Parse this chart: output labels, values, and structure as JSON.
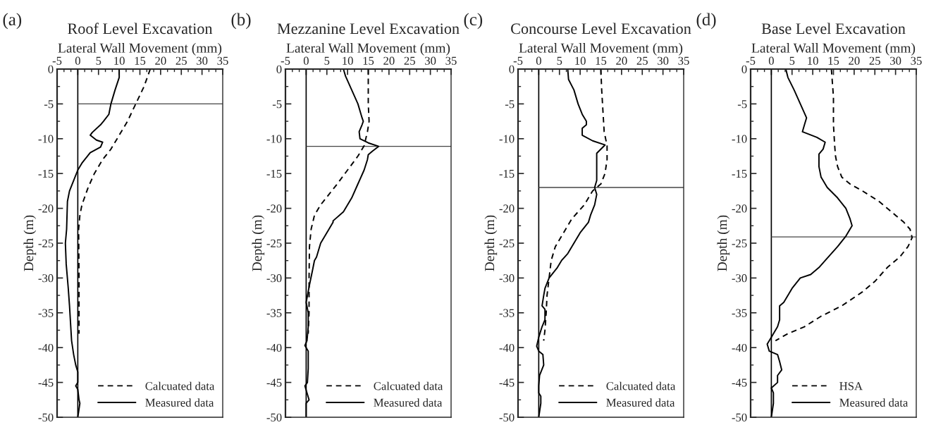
{
  "chart_data": [
    {
      "type": "line",
      "title": "Roof Level Excavation",
      "xlabel": "Lateral Wall Movement (mm)",
      "ylabel": "Depth (m)",
      "annotations": [
        "(a)"
      ],
      "xlim": [
        -5,
        35
      ],
      "xticks": [
        -5,
        0,
        5,
        10,
        15,
        20,
        25,
        30,
        35
      ],
      "ylim": [
        -50,
        0
      ],
      "yticks": [
        -50,
        -45,
        -40,
        -35,
        -30,
        -25,
        -20,
        -15,
        -10,
        -5,
        0
      ],
      "legend": "bottom right",
      "ref_lines": [
        {
          "axis": "x",
          "value": 0,
          "color": "#000000"
        },
        {
          "axis": "y",
          "value": -5,
          "color": "#444444"
        }
      ],
      "series": [
        {
          "name": "Calcuated data",
          "color": "#000000",
          "line_style": "dashed",
          "x": [
            17.5,
            16,
            14,
            12,
            10,
            8,
            6,
            4,
            2.5,
            1,
            0.5,
            0.2,
            0.3,
            0.3
          ],
          "values": [
            0,
            -2.5,
            -5,
            -7.5,
            -9.5,
            -11.5,
            -13,
            -15,
            -17,
            -19.5,
            -21,
            -23,
            -30,
            -38
          ]
        },
        {
          "name": "Measured data",
          "color": "#000000",
          "line_style": "solid",
          "x": [
            10,
            10,
            9,
            8,
            7.5,
            6.2,
            5.5,
            3.5,
            3,
            4.5,
            6,
            5.5,
            3,
            1,
            0,
            -1,
            -2,
            -2.5,
            -2.6,
            -2.7,
            -3,
            -2.8,
            -2.3,
            -2,
            -1.5,
            -1,
            -0.5,
            0,
            0,
            -0.5,
            0,
            0.3,
            0.5,
            0
          ],
          "values": [
            0,
            -1.2,
            -3,
            -5,
            -6.5,
            -7.5,
            -8,
            -9.1,
            -9.5,
            -10.2,
            -10.5,
            -11.2,
            -12,
            -13.5,
            -14.5,
            -16,
            -17.5,
            -19,
            -21,
            -23,
            -25,
            -28,
            -31.5,
            -34,
            -39,
            -41,
            -42.5,
            -43.5,
            -45,
            -45.5,
            -46,
            -47.5,
            -48,
            -50
          ]
        }
      ]
    },
    {
      "type": "line",
      "title": "Mezzanine Level Excavation",
      "xlabel": "Lateral Wall Movement (mm)",
      "ylabel": "Depth (m)",
      "annotations": [
        "(b)"
      ],
      "xlim": [
        -5,
        35
      ],
      "xticks": [
        -5,
        0,
        5,
        10,
        15,
        20,
        25,
        30,
        35
      ],
      "ylim": [
        -50,
        0
      ],
      "yticks": [
        -50,
        -45,
        -40,
        -35,
        -30,
        -25,
        -20,
        -15,
        -10,
        -5,
        0
      ],
      "legend": "bottom right",
      "ref_lines": [
        {
          "axis": "x",
          "value": 0,
          "color": "#000000"
        },
        {
          "axis": "y",
          "value": -11.1,
          "color": "#444444"
        }
      ],
      "series": [
        {
          "name": "Calcuated data",
          "color": "#000000",
          "line_style": "dashed",
          "x": [
            15,
            15,
            15.2,
            14.8,
            14,
            12.5,
            10,
            7.5,
            5.5,
            3.5,
            2,
            1.2,
            0.8,
            0.7,
            0.7,
            0.5
          ],
          "values": [
            0,
            -5,
            -7.5,
            -9,
            -11,
            -12.5,
            -14.5,
            -16.5,
            -18,
            -19.5,
            -21,
            -23,
            -25.5,
            -30,
            -35,
            -38
          ]
        },
        {
          "name": "Measured data",
          "color": "#000000",
          "line_style": "solid",
          "x": [
            9,
            9.5,
            11,
            12.5,
            13.5,
            13.8,
            13.5,
            12.8,
            13,
            15,
            17.5,
            16,
            15,
            14.8,
            14,
            12.5,
            11,
            9,
            6.5,
            6.5,
            5.5,
            3.5,
            2.5,
            2,
            1.5,
            0.8,
            0,
            0.5,
            0.5,
            0.2,
            -0.3,
            0.5,
            0.5,
            0.3,
            -0.3,
            0.2,
            0.7,
            0,
            0
          ],
          "values": [
            0,
            -1,
            -3,
            -5,
            -7,
            -7.5,
            -8,
            -9,
            -10,
            -10.6,
            -11.1,
            -11.8,
            -12.3,
            -13,
            -14.5,
            -16.5,
            -18.5,
            -20.5,
            -21.8,
            -22,
            -23,
            -25,
            -27,
            -27.5,
            -29,
            -31,
            -33.5,
            -35,
            -37,
            -39,
            -39.7,
            -40.5,
            -43,
            -45,
            -45.5,
            -46.5,
            -47.5,
            -48,
            -50
          ]
        }
      ]
    },
    {
      "type": "line",
      "title": "Concourse Level Excavation",
      "xlabel": "Lateral Wall Movement (mm)",
      "ylabel": "Depth (m)",
      "annotations": [
        "(c)"
      ],
      "xlim": [
        -5,
        35
      ],
      "xticks": [
        -5,
        0,
        5,
        10,
        15,
        20,
        25,
        30,
        35
      ],
      "ylim": [
        -50,
        0
      ],
      "yticks": [
        -50,
        -45,
        -40,
        -35,
        -30,
        -25,
        -20,
        -15,
        -10,
        -5,
        0
      ],
      "legend": "bottom right",
      "ref_lines": [
        {
          "axis": "x",
          "value": 0,
          "color": "#000000"
        },
        {
          "axis": "y",
          "value": -17,
          "color": "#444444"
        }
      ],
      "series": [
        {
          "name": "Calcuated data",
          "color": "#000000",
          "line_style": "dashed",
          "x": [
            15,
            15.2,
            15.5,
            15.8,
            16.5,
            16.5,
            16,
            15,
            13,
            11,
            8,
            6,
            4,
            3,
            2.5,
            2,
            1.8,
            1.5,
            1.2
          ],
          "values": [
            0,
            -3,
            -6,
            -9,
            -11,
            -13,
            -15,
            -16.5,
            -17.5,
            -19.5,
            -21.5,
            -23.5,
            -25.5,
            -27.5,
            -30,
            -32.5,
            -35,
            -37.5,
            -39
          ]
        },
        {
          "name": "Measured data",
          "color": "#000000",
          "line_style": "solid",
          "x": [
            7,
            7.2,
            8.5,
            9.5,
            10.5,
            11.5,
            11.5,
            10.5,
            10.5,
            13,
            16,
            14,
            14,
            13.5,
            14,
            13.5,
            12.5,
            12,
            10,
            8.5,
            7,
            5.5,
            4.5,
            2.5,
            1.5,
            1.2,
            0.8,
            1.5,
            1.5,
            0.8,
            0,
            -0.5,
            0,
            1,
            1.2,
            0.2,
            0,
            0,
            0.5,
            0.5,
            0
          ],
          "values": [
            0,
            -1.5,
            -3,
            -5,
            -6.5,
            -7.5,
            -8,
            -8.5,
            -9.5,
            -10.3,
            -10.9,
            -12.1,
            -16,
            -17,
            -18,
            -19.5,
            -21,
            -22,
            -23.5,
            -25,
            -26.5,
            -27.5,
            -28.5,
            -30,
            -31.5,
            -32.5,
            -34,
            -34.5,
            -36,
            -37,
            -38.5,
            -39.8,
            -40.5,
            -41,
            -42.5,
            -44,
            -45.5,
            -46.5,
            -47,
            -48,
            -50
          ]
        }
      ]
    },
    {
      "type": "line",
      "title": "Base Level Excavation",
      "xlabel": "Lateral Wall Movement (mm)",
      "ylabel": "Depth (m)",
      "annotations": [
        "(d)"
      ],
      "xlim": [
        -5,
        35
      ],
      "xticks": [
        -5,
        0,
        5,
        10,
        15,
        20,
        25,
        30,
        35
      ],
      "ylim": [
        -50,
        0
      ],
      "yticks": [
        -50,
        -45,
        -40,
        -35,
        -30,
        -25,
        -20,
        -15,
        -10,
        -5,
        0
      ],
      "legend": "bottom right",
      "ref_lines": [
        {
          "axis": "x",
          "value": 0,
          "color": "#000000"
        },
        {
          "axis": "y",
          "value": -24.1,
          "color": "#444444"
        }
      ],
      "series": [
        {
          "name": "HSA",
          "color": "#000000",
          "line_style": "dashed",
          "x": [
            14.5,
            15,
            15,
            15.3,
            15.5,
            16,
            17,
            19,
            22,
            26,
            29,
            32,
            33.5,
            34,
            33,
            31,
            28,
            25,
            22,
            17,
            12,
            8,
            4,
            1
          ],
          "values": [
            0,
            -4,
            -8,
            -11,
            -12.5,
            -14,
            -15.5,
            -16.5,
            -17.5,
            -19,
            -20.5,
            -22,
            -23,
            -24.2,
            -25.5,
            -27,
            -28.5,
            -30.5,
            -32,
            -34,
            -35.5,
            -37,
            -38,
            -39
          ]
        },
        {
          "name": "Measured data",
          "color": "#000000",
          "line_style": "solid",
          "x": [
            3.5,
            4,
            5.5,
            7,
            8.5,
            8,
            7.5,
            11,
            13,
            12.5,
            11.5,
            11.5,
            12,
            13.5,
            16,
            18,
            19,
            19.5,
            18,
            16,
            13,
            11.5,
            9.5,
            7,
            5,
            3,
            2,
            2,
            1.5,
            0,
            -1,
            -0.5,
            1.5,
            2,
            2.5,
            1.5,
            1.5,
            0,
            0.5,
            0.5,
            0
          ],
          "values": [
            0,
            -1.2,
            -3,
            -5,
            -7,
            -8,
            -9,
            -9.8,
            -10.5,
            -11.5,
            -12.2,
            -14,
            -15.5,
            -17,
            -18.5,
            -20,
            -21.5,
            -22.5,
            -24,
            -25.5,
            -27.5,
            -28.5,
            -29.5,
            -30,
            -31.5,
            -33.5,
            -34,
            -36,
            -37,
            -38.5,
            -39.5,
            -40.5,
            -41,
            -42,
            -43.2,
            -44,
            -45,
            -45.8,
            -46.5,
            -48,
            -50
          ]
        }
      ]
    }
  ]
}
